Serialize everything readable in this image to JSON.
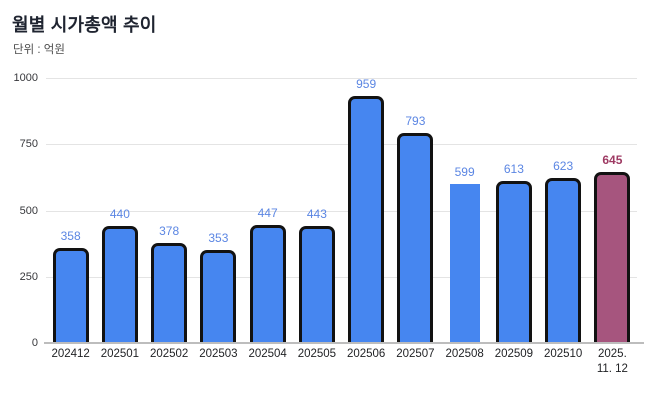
{
  "header": {
    "title": "월별 시가총액 추이",
    "unit_label": "단위 : 억원"
  },
  "chart_data": {
    "type": "bar",
    "title": "월별 시가총액 추이",
    "subtitle": "단위 : 억원",
    "unit": "억원",
    "categories": [
      "202412",
      "202501",
      "202502",
      "202503",
      "202504",
      "202505",
      "202506",
      "202507",
      "202508",
      "202509",
      "202510",
      "2025.\n11. 12"
    ],
    "values": [
      358,
      440,
      378,
      353,
      447,
      443,
      959,
      793,
      599,
      613,
      623,
      645
    ],
    "bar_variants": [
      "outlined",
      "outlined",
      "outlined",
      "outlined",
      "outlined",
      "outlined",
      "outlined",
      "outlined",
      "flat",
      "outlined",
      "outlined",
      "highlight"
    ],
    "xlabel": "",
    "ylabel": "",
    "ylim": [
      0,
      1000
    ],
    "yticks": [
      0,
      250,
      500,
      750,
      1000
    ],
    "grid": true,
    "legend": false,
    "colors": {
      "bar_fill": "#4686F0",
      "bar_outline": "#121212",
      "highlight_fill": "#A6557E",
      "value_label": "#5B86E3",
      "highlight_value_label": "#9E3A63",
      "gridline": "#e4e4e4",
      "axis_line": "#bdbdbd"
    }
  }
}
